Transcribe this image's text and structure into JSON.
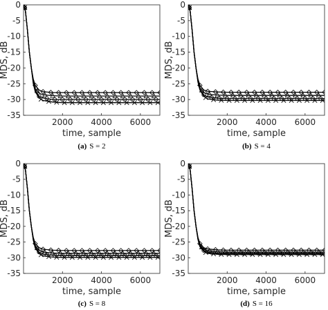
{
  "chart_data": [
    {
      "type": "line",
      "caption_letter": "(a)",
      "caption_text": "S = 2",
      "xlabel": "time, sample",
      "ylabel": "MDS, dB",
      "xlim": [
        0,
        7000
      ],
      "ylim": [
        -35,
        0
      ],
      "xticks": [
        "2000",
        "4000",
        "6000"
      ],
      "yticks": [
        "0",
        "-5",
        "-10",
        "-15",
        "-20",
        "-25",
        "-30",
        "-35"
      ],
      "grid": false,
      "series": [
        {
          "marker": "diamond",
          "x": [
            0,
            100,
            200,
            300,
            400,
            500,
            600,
            800,
            1000,
            1500,
            2000,
            3000,
            4000,
            5000,
            6000,
            7000
          ],
          "values": [
            0,
            -2,
            -8,
            -15,
            -20,
            -23.5,
            -25.5,
            -27,
            -27.5,
            -27.8,
            -27.8,
            -27.8,
            -27.8,
            -27.8,
            -27.8,
            -27.8
          ]
        },
        {
          "marker": "triangle",
          "x": [
            0,
            100,
            200,
            300,
            400,
            500,
            600,
            800,
            1000,
            1500,
            2000,
            3000,
            4000,
            5000,
            6000,
            7000
          ],
          "values": [
            0,
            -2,
            -8,
            -15,
            -20,
            -24,
            -26.5,
            -28,
            -28.5,
            -28.8,
            -28.9,
            -28.9,
            -28.9,
            -28.9,
            -28.9,
            -28.9
          ]
        },
        {
          "marker": "circle",
          "x": [
            0,
            100,
            200,
            300,
            400,
            500,
            600,
            800,
            1000,
            1500,
            2000,
            3000,
            4000,
            5000,
            6000,
            7000
          ],
          "values": [
            0,
            -2,
            -8,
            -15,
            -20,
            -24.5,
            -27,
            -29,
            -29.5,
            -30,
            -30,
            -30,
            -30,
            -30,
            -30,
            -30
          ]
        },
        {
          "marker": "x",
          "x": [
            0,
            100,
            200,
            300,
            400,
            500,
            600,
            800,
            1000,
            1500,
            2000,
            3000,
            4000,
            5000,
            6000,
            7000
          ],
          "values": [
            0,
            -2,
            -8,
            -15,
            -20,
            -25,
            -27.5,
            -29.5,
            -30.3,
            -30.8,
            -31,
            -31,
            -31,
            -31,
            -31,
            -31
          ]
        }
      ]
    },
    {
      "type": "line",
      "caption_letter": "(b)",
      "caption_text": "S = 4",
      "xlabel": "time, sample",
      "ylabel": "MDS, dB",
      "xlim": [
        0,
        7000
      ],
      "ylim": [
        -35,
        0
      ],
      "xticks": [
        "2000",
        "4000",
        "6000"
      ],
      "yticks": [
        "0",
        "-5",
        "-10",
        "-15",
        "-20",
        "-25",
        "-30",
        "-35"
      ],
      "grid": false,
      "series": [
        {
          "marker": "diamond",
          "x": [
            0,
            100,
            200,
            300,
            400,
            500,
            600,
            800,
            1000,
            1500,
            2000,
            3000,
            4000,
            5000,
            6000,
            7000
          ],
          "values": [
            0,
            -2,
            -8,
            -15,
            -20,
            -23.5,
            -25.5,
            -27,
            -27.4,
            -27.6,
            -27.7,
            -27.7,
            -27.7,
            -27.7,
            -27.7,
            -27.7
          ]
        },
        {
          "marker": "triangle",
          "x": [
            0,
            100,
            200,
            300,
            400,
            500,
            600,
            800,
            1000,
            1500,
            2000,
            3000,
            4000,
            5000,
            6000,
            7000
          ],
          "values": [
            0,
            -2,
            -8,
            -15,
            -20,
            -24,
            -26.3,
            -27.8,
            -28.3,
            -28.6,
            -28.7,
            -28.7,
            -28.7,
            -28.7,
            -28.7,
            -28.7
          ]
        },
        {
          "marker": "circle",
          "x": [
            0,
            100,
            200,
            300,
            400,
            500,
            600,
            800,
            1000,
            1500,
            2000,
            3000,
            4000,
            5000,
            6000,
            7000
          ],
          "values": [
            0,
            -2,
            -8,
            -15,
            -20,
            -24.3,
            -26.8,
            -28.5,
            -29.2,
            -29.6,
            -29.7,
            -29.7,
            -29.7,
            -29.7,
            -29.7,
            -29.7
          ]
        },
        {
          "marker": "x",
          "x": [
            0,
            100,
            200,
            300,
            400,
            500,
            600,
            800,
            1000,
            1500,
            2000,
            3000,
            4000,
            5000,
            6000,
            7000
          ],
          "values": [
            0,
            -2,
            -8,
            -15,
            -20,
            -24.5,
            -27,
            -29,
            -29.8,
            -30.2,
            -30.3,
            -30.3,
            -30.3,
            -30.3,
            -30.3,
            -30.3
          ]
        }
      ]
    },
    {
      "type": "line",
      "caption_letter": "(c)",
      "caption_text": "S = 8",
      "xlabel": "time, sample",
      "ylabel": "MDS, dB",
      "xlim": [
        0,
        7000
      ],
      "ylim": [
        -35,
        0
      ],
      "xticks": [
        "2000",
        "4000",
        "6000"
      ],
      "yticks": [
        "0",
        "-5",
        "-10",
        "-15",
        "-20",
        "-25",
        "-30",
        "-35"
      ],
      "grid": false,
      "series": [
        {
          "marker": "diamond",
          "x": [
            0,
            100,
            200,
            300,
            400,
            500,
            600,
            800,
            1000,
            1500,
            2000,
            3000,
            4000,
            5000,
            6000,
            7000
          ],
          "values": [
            0,
            -2,
            -8,
            -15,
            -20,
            -23.5,
            -25.5,
            -26.8,
            -27.3,
            -27.6,
            -27.7,
            -27.7,
            -27.7,
            -27.7,
            -27.7,
            -27.7
          ]
        },
        {
          "marker": "triangle",
          "x": [
            0,
            100,
            200,
            300,
            400,
            500,
            600,
            800,
            1000,
            1500,
            2000,
            3000,
            4000,
            5000,
            6000,
            7000
          ],
          "values": [
            0,
            -2,
            -8,
            -15,
            -20,
            -24,
            -26.2,
            -27.6,
            -28.2,
            -28.5,
            -28.6,
            -28.6,
            -28.6,
            -28.6,
            -28.6,
            -28.6
          ]
        },
        {
          "marker": "circle",
          "x": [
            0,
            100,
            200,
            300,
            400,
            500,
            600,
            800,
            1000,
            1500,
            2000,
            3000,
            4000,
            5000,
            6000,
            7000
          ],
          "values": [
            0,
            -2,
            -8,
            -15,
            -20,
            -24.2,
            -26.6,
            -28.2,
            -28.9,
            -29.2,
            -29.3,
            -29.3,
            -29.3,
            -29.3,
            -29.3,
            -29.3
          ]
        },
        {
          "marker": "x",
          "x": [
            0,
            100,
            200,
            300,
            400,
            500,
            600,
            800,
            1000,
            1500,
            2000,
            3000,
            4000,
            5000,
            6000,
            7000
          ],
          "values": [
            0,
            -2,
            -8,
            -15,
            -20,
            -24.4,
            -26.9,
            -28.7,
            -29.4,
            -29.8,
            -29.9,
            -29.9,
            -29.9,
            -29.9,
            -29.9,
            -29.9
          ]
        }
      ]
    },
    {
      "type": "line",
      "caption_letter": "(d)",
      "caption_text": "S = 16",
      "xlabel": "time, sample",
      "ylabel": "MDS, dB",
      "xlim": [
        0,
        7000
      ],
      "ylim": [
        -35,
        0
      ],
      "xticks": [
        "2000",
        "4000",
        "6000"
      ],
      "yticks": [
        "0",
        "-5",
        "-10",
        "-15",
        "-20",
        "-25",
        "-30",
        "-35"
      ],
      "grid": false,
      "series": [
        {
          "marker": "diamond",
          "x": [
            0,
            100,
            200,
            300,
            400,
            500,
            600,
            800,
            1000,
            1500,
            2000,
            3000,
            4000,
            5000,
            6000,
            7000
          ],
          "values": [
            0,
            -2,
            -8,
            -15,
            -20,
            -23.5,
            -25.5,
            -26.8,
            -27.2,
            -27.5,
            -27.6,
            -27.6,
            -27.6,
            -27.6,
            -27.6,
            -27.6
          ]
        },
        {
          "marker": "triangle",
          "x": [
            0,
            100,
            200,
            300,
            400,
            500,
            600,
            800,
            1000,
            1500,
            2000,
            3000,
            4000,
            5000,
            6000,
            7000
          ],
          "values": [
            0,
            -2,
            -8,
            -15,
            -20,
            -23.8,
            -26,
            -27.3,
            -27.8,
            -28.1,
            -28.2,
            -28.2,
            -28.2,
            -28.2,
            -28.2,
            -28.2
          ]
        },
        {
          "marker": "circle",
          "x": [
            0,
            100,
            200,
            300,
            400,
            500,
            600,
            800,
            1000,
            1500,
            2000,
            3000,
            4000,
            5000,
            6000,
            7000
          ],
          "values": [
            0,
            -2,
            -8,
            -15,
            -20,
            -24,
            -26.3,
            -27.7,
            -28.2,
            -28.5,
            -28.6,
            -28.6,
            -28.6,
            -28.6,
            -28.6,
            -28.6
          ]
        },
        {
          "marker": "x",
          "x": [
            0,
            100,
            200,
            300,
            400,
            500,
            600,
            800,
            1000,
            1500,
            2000,
            3000,
            4000,
            5000,
            6000,
            7000
          ],
          "values": [
            0,
            -2,
            -8,
            -15,
            -20,
            -24.2,
            -26.5,
            -28,
            -28.6,
            -28.9,
            -29,
            -29,
            -29,
            -29,
            -29,
            -29
          ]
        }
      ]
    }
  ]
}
